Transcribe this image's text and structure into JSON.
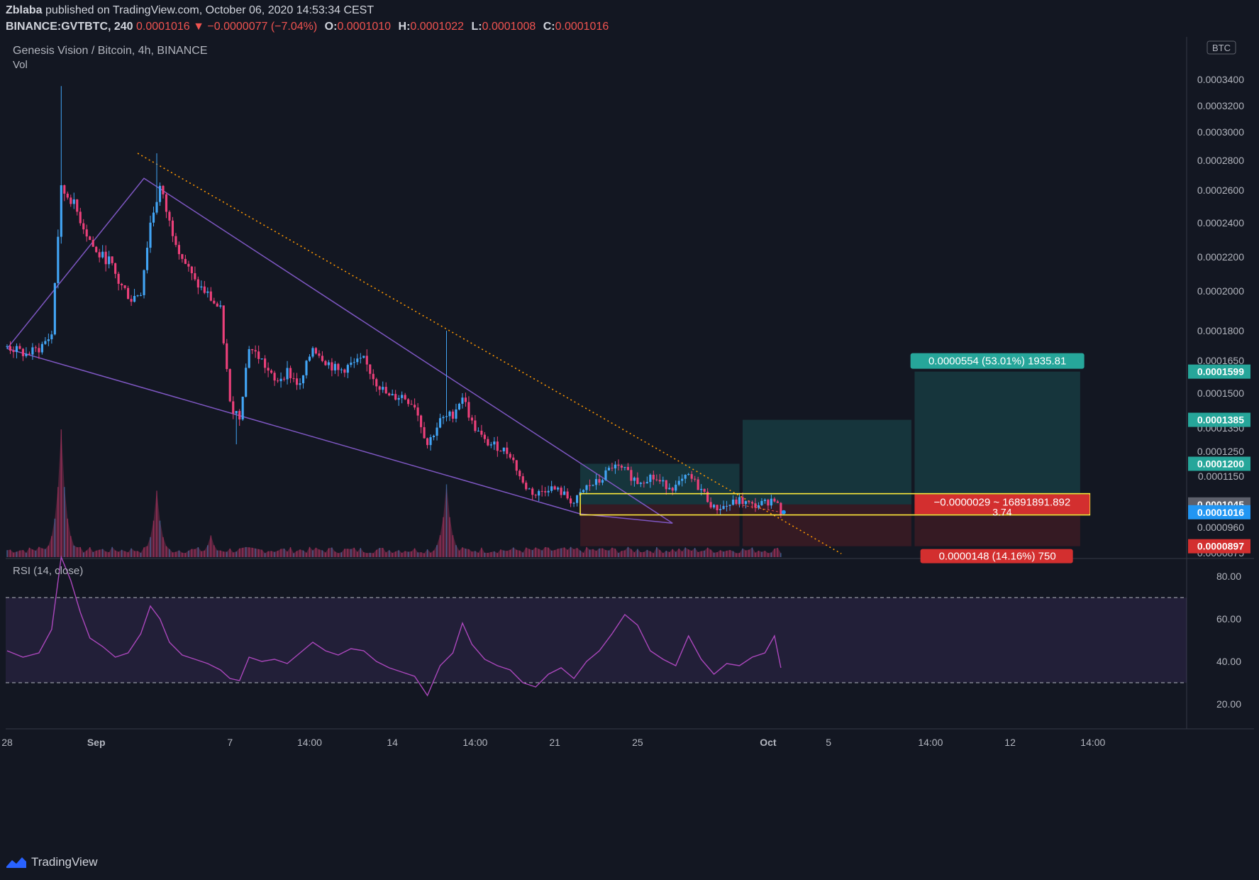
{
  "header": {
    "author": "Zblaba",
    "published_text": "published on TradingView.com, October 06, 2020 14:53:34 CEST",
    "symbol": "BINANCE:GVTBTC, 240",
    "last_price": "0.0001016",
    "change": "▼ −0.0000077 (−7.04%)",
    "open_label": "O:",
    "open": "0.0001010",
    "high_label": "H:",
    "high": "0.0001022",
    "low_label": "L:",
    "low": "0.0001008",
    "close_label": "C:",
    "close": "0.0001016"
  },
  "footer": {
    "brand": "TradingView"
  },
  "colors": {
    "background": "#131722",
    "up": "#42a5f5",
    "down": "#ec407a",
    "wedge": "#7e57c2",
    "trend": "#ff9800",
    "rsi": "#ab47bc",
    "target": "#26a69a",
    "stop": "#d32f2f",
    "zone": "#ffeb3b",
    "price": "#2196f3"
  },
  "chart_data": [
    {
      "type": "candlestick",
      "title": "Genesis Vision / Bitcoin, 4h, BINANCE",
      "subtitle": "Vol",
      "currency": "BTC",
      "x_ticks": [
        "28",
        "Sep",
        "7",
        "14:00",
        "14",
        "14:00",
        "21",
        "25",
        "Oct",
        "5",
        "14:00",
        "12",
        "14:00"
      ],
      "y_ticks": [
        "0.0003400",
        "0.0003200",
        "0.0003000",
        "0.0002800",
        "0.0002600",
        "0.0002400",
        "0.0002200",
        "0.0002000",
        "0.0001800",
        "0.0001650",
        "0.0001500",
        "0.0001350",
        "0.0001250",
        "0.0001150",
        "0.0000960",
        "0.0000875"
      ],
      "y_tick_values": [
        0.00034,
        0.00032,
        0.0003,
        0.00028,
        0.00026,
        0.00024,
        0.00022,
        0.0002,
        0.00018,
        0.000165,
        0.00015,
        0.000135,
        0.000125,
        0.000115,
        9.6e-05,
        8.75e-05
      ],
      "axis_tags": [
        {
          "text": "0.0001599",
          "value": 0.0001599,
          "color": "#26a69a"
        },
        {
          "text": "0.0001385",
          "value": 0.0001385,
          "color": "#26a69a"
        },
        {
          "text": "0.0001200",
          "value": 0.00012,
          "color": "#26a69a"
        },
        {
          "text": "0.0001045",
          "value": 0.0001045,
          "color": "#5d606b"
        },
        {
          "text": "0.0001016",
          "value": 0.0001016,
          "color": "#2196f3"
        },
        {
          "text": "0.0000897",
          "value": 8.97e-05,
          "color": "#d32f2f"
        }
      ],
      "price_path": [
        [
          0,
          0.000172
        ],
        [
          6,
          0.000168
        ],
        [
          10,
          0.000171
        ],
        [
          14,
          0.000178
        ],
        [
          17,
          0.00026
        ],
        [
          20,
          0.000255
        ],
        [
          24,
          0.000238
        ],
        [
          28,
          0.000222
        ],
        [
          32,
          0.000218
        ],
        [
          35,
          0.000205
        ],
        [
          39,
          0.000196
        ],
        [
          42,
          0.0002
        ],
        [
          45,
          0.00024
        ],
        [
          48,
          0.000262
        ],
        [
          51,
          0.00024
        ],
        [
          55,
          0.00022
        ],
        [
          59,
          0.000205
        ],
        [
          63,
          0.000198
        ],
        [
          67,
          0.00019
        ],
        [
          70,
          0.000145
        ],
        [
          73,
          0.00014
        ],
        [
          76,
          0.000172
        ],
        [
          80,
          0.000165
        ],
        [
          84,
          0.000155
        ],
        [
          88,
          0.00016
        ],
        [
          92,
          0.000153
        ],
        [
          96,
          0.000172
        ],
        [
          100,
          0.000165
        ],
        [
          104,
          0.00016
        ],
        [
          108,
          0.000163
        ],
        [
          112,
          0.000165
        ],
        [
          116,
          0.000155
        ],
        [
          120,
          0.000148
        ],
        [
          124,
          0.000149
        ],
        [
          128,
          0.000145
        ],
        [
          132,
          0.000128
        ],
        [
          136,
          0.000138
        ],
        [
          140,
          0.000141
        ],
        [
          143,
          0.000149
        ],
        [
          146,
          0.000137
        ],
        [
          150,
          0.000129
        ],
        [
          154,
          0.000127
        ],
        [
          158,
          0.000124
        ],
        [
          162,
          0.000112
        ],
        [
          166,
          0.000108
        ],
        [
          170,
          0.000111
        ],
        [
          174,
          0.000109
        ],
        [
          178,
          0.000105
        ],
        [
          182,
          0.000111
        ],
        [
          186,
          0.000113
        ],
        [
          190,
          0.000119
        ],
        [
          194,
          0.000117
        ],
        [
          198,
          0.000113
        ],
        [
          202,
          0.000115
        ],
        [
          206,
          0.000112
        ],
        [
          210,
          0.000111
        ],
        [
          214,
          0.000115
        ],
        [
          218,
          0.00011
        ],
        [
          222,
          0.000103
        ],
        [
          226,
          0.000104
        ],
        [
          230,
          0.000106
        ],
        [
          234,
          0.000104
        ],
        [
          238,
          0.000105
        ],
        [
          241,
          0.000107
        ],
        [
          243,
          0.000101
        ]
      ],
      "wicks": [
        {
          "i": 17,
          "high": 0.000335
        },
        {
          "i": 47,
          "high": 0.000285
        },
        {
          "i": 68,
          "high": 0.00019
        },
        {
          "i": 72,
          "low": 0.000128
        },
        {
          "i": 138,
          "high": 0.00018
        }
      ],
      "last_index": 243,
      "x_tick_index": [
        0,
        28,
        70,
        95,
        121,
        147,
        172,
        198,
        239,
        258,
        290,
        315,
        341
      ],
      "x_max": 370,
      "volume_peaks": [
        [
          17,
          1.0
        ],
        [
          47,
          0.52
        ],
        [
          138,
          0.57
        ],
        [
          64,
          0.17
        ],
        [
          10,
          0.08
        ]
      ],
      "wedge_upper": [
        [
          0,
          0.000171
        ],
        [
          43,
          0.000268
        ],
        [
          209,
          9.75e-05
        ]
      ],
      "wedge_lower": [
        [
          0,
          0.000171
        ],
        [
          180,
          0.000101
        ],
        [
          209,
          9.75e-05
        ]
      ],
      "trendline": [
        [
          41,
          0.000285
        ],
        [
          262,
          8.7e-05
        ]
      ],
      "positions": [
        {
          "x0": 180,
          "x1": 230,
          "entry": 0.0001045,
          "target": 0.00012,
          "stop": 8.97e-05,
          "label": ""
        },
        {
          "x0": 231,
          "x1": 284,
          "entry": 0.0001045,
          "target": 0.0001385,
          "stop": 8.97e-05,
          "label": ""
        },
        {
          "x0": 285,
          "x1": 337,
          "entry": 0.0001045,
          "target": 0.0001599,
          "stop": 8.97e-05,
          "target_label": "0.0000554 (53.01%) 1935.81",
          "stop_label": "0.0000148 (14.16%) 750"
        }
      ],
      "zone": {
        "x0": 180,
        "x1": 340,
        "top": 0.0001085,
        "bottom": 0.0001006,
        "label_line1": "−0.0000029 ~ 16891891.892",
        "label_line2": "3.74"
      }
    },
    {
      "type": "line",
      "title": "RSI (14, close)",
      "y_ticks": [
        "80.00",
        "60.00",
        "40.00",
        "20.00"
      ],
      "y_tick_values": [
        80,
        60,
        40,
        20
      ],
      "bands": [
        70,
        30
      ],
      "series": [
        {
          "values": [
            [
              0,
              45
            ],
            [
              5,
              42
            ],
            [
              10,
              44
            ],
            [
              14,
              55
            ],
            [
              17,
              89
            ],
            [
              20,
              78
            ],
            [
              23,
              63
            ],
            [
              26,
              51
            ],
            [
              30,
              47
            ],
            [
              34,
              42
            ],
            [
              38,
              44
            ],
            [
              42,
              53
            ],
            [
              45,
              66
            ],
            [
              48,
              60
            ],
            [
              51,
              49
            ],
            [
              55,
              43
            ],
            [
              59,
              41
            ],
            [
              63,
              39
            ],
            [
              67,
              36
            ],
            [
              70,
              32
            ],
            [
              73,
              31
            ],
            [
              76,
              42
            ],
            [
              80,
              40
            ],
            [
              84,
              41
            ],
            [
              88,
              39
            ],
            [
              92,
              44
            ],
            [
              96,
              49
            ],
            [
              100,
              45
            ],
            [
              104,
              43
            ],
            [
              108,
              46
            ],
            [
              112,
              45
            ],
            [
              116,
              40
            ],
            [
              120,
              37
            ],
            [
              124,
              35
            ],
            [
              128,
              33
            ],
            [
              132,
              24
            ],
            [
              136,
              38
            ],
            [
              140,
              44
            ],
            [
              143,
              58
            ],
            [
              146,
              48
            ],
            [
              150,
              41
            ],
            [
              154,
              38
            ],
            [
              158,
              36
            ],
            [
              162,
              30
            ],
            [
              166,
              28
            ],
            [
              170,
              34
            ],
            [
              174,
              37
            ],
            [
              178,
              32
            ],
            [
              182,
              40
            ],
            [
              186,
              45
            ],
            [
              190,
              53
            ],
            [
              194,
              62
            ],
            [
              198,
              57
            ],
            [
              202,
              45
            ],
            [
              206,
              41
            ],
            [
              210,
              38
            ],
            [
              214,
              52
            ],
            [
              218,
              41
            ],
            [
              222,
              34
            ],
            [
              226,
              39
            ],
            [
              230,
              38
            ],
            [
              234,
              42
            ],
            [
              238,
              44
            ],
            [
              241,
              52
            ],
            [
              243,
              37
            ]
          ]
        }
      ]
    }
  ]
}
